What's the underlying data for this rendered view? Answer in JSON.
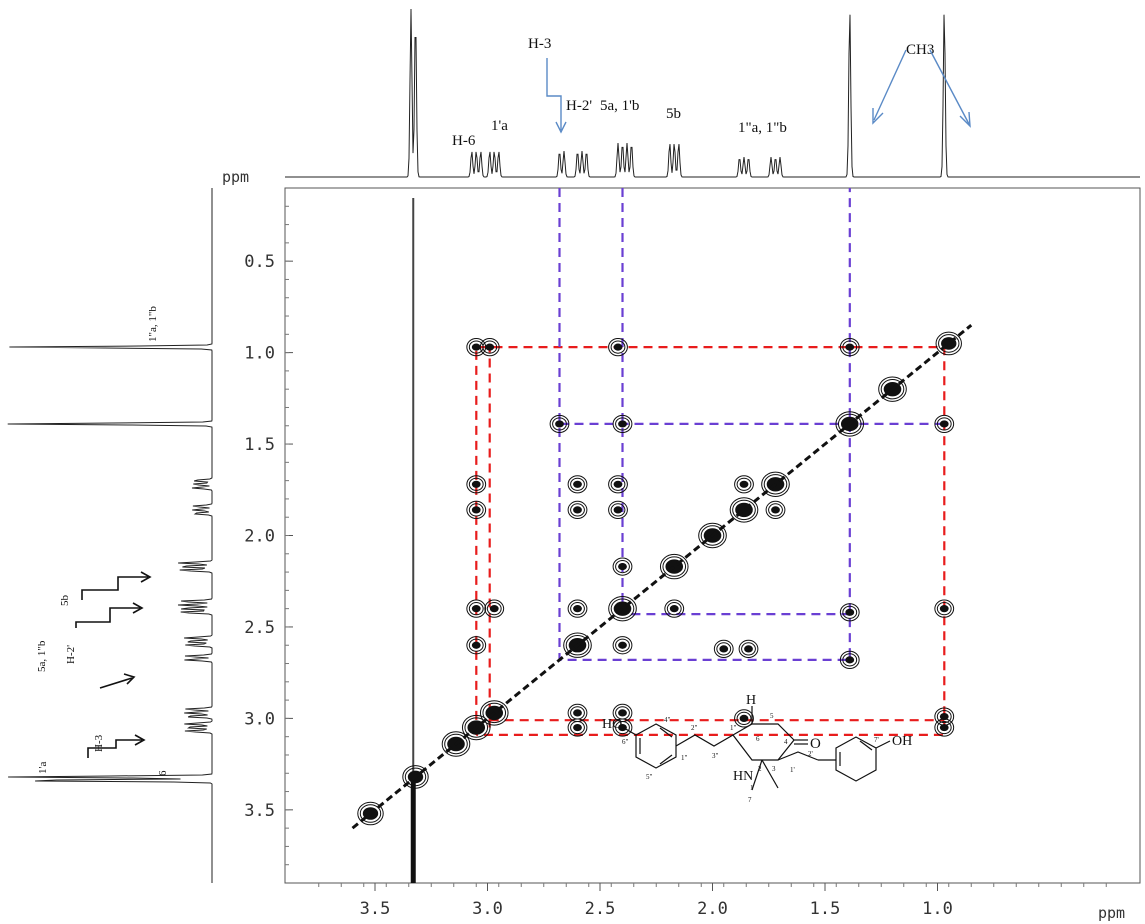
{
  "chart_data": {
    "type": "2D NMR COSY contour plot",
    "x_axis": {
      "unit_label": "ppm",
      "range": [
        3.9,
        0.1
      ],
      "ticks": [
        3.5,
        3.0,
        2.5,
        2.0,
        1.5,
        1.0
      ],
      "tick_labels": [
        "3.5",
        "3.0",
        "2.5",
        "2.0",
        "1.5",
        "1.0"
      ]
    },
    "y_axis": {
      "unit_label": "ppm",
      "range": [
        0.1,
        3.9
      ],
      "ticks": [
        0.5,
        1.0,
        1.5,
        2.0,
        2.5,
        3.0,
        3.5
      ],
      "tick_labels": [
        "0.5",
        "1.0",
        "1.5",
        "2.0",
        "2.5",
        "3.0",
        "3.5"
      ]
    },
    "top_projection": {
      "peaks_ppm": [
        3.34,
        3.32,
        3.07,
        3.05,
        3.03,
        2.99,
        2.97,
        2.95,
        2.68,
        2.66,
        2.6,
        2.58,
        2.56,
        2.42,
        2.4,
        2.38,
        2.36,
        2.19,
        2.17,
        2.15,
        1.88,
        1.86,
        1.84,
        1.74,
        1.72,
        1.7,
        1.39,
        0.97
      ],
      "labels": [
        {
          "text": "H-6",
          "ppm": 3.05
        },
        {
          "text": "1'a",
          "ppm": 2.97
        },
        {
          "text": "H-3",
          "ppm": 2.68
        },
        {
          "text": "H-2'",
          "ppm": 2.6
        },
        {
          "text": "5a, 1'b",
          "ppm": 2.4
        },
        {
          "text": "5b",
          "ppm": 2.17
        },
        {
          "text": "1\"a,  1\"b",
          "ppm": 1.8
        },
        {
          "text": "CH3",
          "ppm": 1.18
        }
      ]
    },
    "left_projection": {
      "labels": [
        "1\"a, 1\"b",
        "5b",
        "5a, 1\"b",
        "H-2'",
        "H-3",
        "1'a",
        "6"
      ]
    },
    "diagonal_peaks_ppm": [
      3.52,
      3.32,
      3.14,
      3.05,
      2.97,
      2.6,
      2.4,
      2.17,
      2.0,
      1.86,
      1.72,
      1.39,
      1.2,
      0.95
    ],
    "cross_peaks": [
      {
        "x": 3.05,
        "y": 0.97
      },
      {
        "x": 2.99,
        "y": 0.97
      },
      {
        "x": 2.42,
        "y": 0.97
      },
      {
        "x": 1.39,
        "y": 0.97
      },
      {
        "x": 2.68,
        "y": 1.39
      },
      {
        "x": 2.4,
        "y": 1.39
      },
      {
        "x": 0.97,
        "y": 1.39
      },
      {
        "x": 3.05,
        "y": 1.72
      },
      {
        "x": 3.05,
        "y": 1.86
      },
      {
        "x": 2.6,
        "y": 1.72
      },
      {
        "x": 2.6,
        "y": 1.86
      },
      {
        "x": 2.42,
        "y": 1.72
      },
      {
        "x": 2.42,
        "y": 1.86
      },
      {
        "x": 1.86,
        "y": 1.72
      },
      {
        "x": 1.72,
        "y": 1.86
      },
      {
        "x": 2.4,
        "y": 2.17
      },
      {
        "x": 2.17,
        "y": 2.4
      },
      {
        "x": 3.05,
        "y": 2.4
      },
      {
        "x": 2.97,
        "y": 2.4
      },
      {
        "x": 2.6,
        "y": 2.4
      },
      {
        "x": 1.39,
        "y": 2.42
      },
      {
        "x": 0.97,
        "y": 2.4
      },
      {
        "x": 3.05,
        "y": 2.6
      },
      {
        "x": 2.4,
        "y": 2.6
      },
      {
        "x": 1.95,
        "y": 2.62
      },
      {
        "x": 1.84,
        "y": 2.62
      },
      {
        "x": 1.39,
        "y": 2.68
      },
      {
        "x": 2.6,
        "y": 2.97
      },
      {
        "x": 2.4,
        "y": 2.97
      },
      {
        "x": 2.6,
        "y": 3.05
      },
      {
        "x": 2.4,
        "y": 3.05
      },
      {
        "x": 1.86,
        "y": 3.0
      },
      {
        "x": 0.97,
        "y": 2.99
      },
      {
        "x": 0.97,
        "y": 3.05
      }
    ],
    "correlation_paths": [
      {
        "color": "#e81c1c",
        "points": [
          [
            3.05,
            3.09
          ],
          [
            3.05,
            0.97
          ],
          [
            0.97,
            0.97
          ],
          [
            0.97,
            3.09
          ],
          [
            3.05,
            3.09
          ]
        ]
      },
      {
        "color": "#e81c1c",
        "points": [
          [
            2.99,
            3.05
          ],
          [
            2.99,
            0.97
          ]
        ]
      },
      {
        "color": "#e81c1c",
        "points": [
          [
            2.99,
            3.01
          ],
          [
            0.97,
            3.01
          ]
        ]
      },
      {
        "color": "#6a3fd3",
        "points": [
          [
            2.68,
            0.1
          ],
          [
            2.68,
            2.68
          ],
          [
            1.39,
            2.68
          ],
          [
            1.39,
            0.1
          ]
        ]
      },
      {
        "color": "#6a3fd3",
        "points": [
          [
            2.4,
            0.1
          ],
          [
            2.4,
            2.43
          ],
          [
            1.39,
            2.43
          ]
        ]
      },
      {
        "color": "#6a3fd3",
        "points": [
          [
            2.68,
            1.39
          ],
          [
            0.97,
            1.39
          ]
        ]
      }
    ],
    "structure_labels": {
      "oh_left": "HO",
      "oh_right": "OH",
      "h": "H",
      "nh": "HN",
      "o": "O",
      "atom_numbers": [
        "4\"",
        "6\"",
        "5\"",
        "1\"",
        "2\"",
        "3\"",
        "1\"",
        "6",
        "5",
        "4",
        "3",
        "2",
        "7",
        "1",
        "1'",
        "2'",
        "7'"
      ]
    },
    "colors": {
      "red_path": "#e81c1c",
      "purple_path": "#6a3fd3",
      "annotation_arrow": "#5a8ac6",
      "contour": "#111111"
    }
  }
}
